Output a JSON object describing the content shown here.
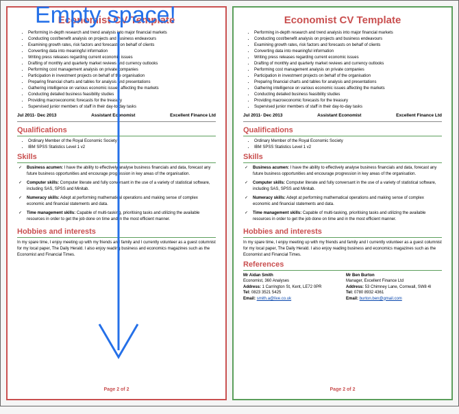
{
  "annotation": {
    "label": "Empty space!",
    "label_color": "#2570e8",
    "label_fontsize": 34,
    "arrow_color": "#2570e8",
    "arrow_width": 3
  },
  "cv": {
    "title": "Economist CV Template",
    "title_color": "#c94f4f",
    "bullets": [
      "Performing in-depth research and trend analysis into major financial markets",
      "Conducting cost/benefit analysis on projects and business endeavours",
      "Examining growth rates, risk factors and forecasts on behalf of clients",
      "Converting data into meaningful information",
      "Writing press releases regarding current economic issues",
      "Drafting of monthly and quarterly market reviews and currency outlooks",
      "Performing cost management analysis on private companies",
      "Participation in investment projects on behalf of the organisation",
      "Preparing financial charts and tables for analysis and presentations",
      "Gathering intelligence on various economic issues affecting the markets",
      "Conducting detailed business feasibility studies",
      "Providing macroeconomic forecasts for the treasury",
      "Supervised junior members of staff in their day-to-day tasks"
    ],
    "job": {
      "dates": "Jul 2011- Dec 2013",
      "role": "Assistant Economist",
      "company": "Excellent Finance Ltd"
    },
    "sections": {
      "qualifications": {
        "title": "Qualifications",
        "items": [
          "Ordinary Member of the Royal Economic Society",
          "IBM SPSS Statistics Level 1 v2"
        ]
      },
      "skills": {
        "title": "Skills",
        "items": [
          {
            "label": "Business acumen:",
            "text": " I have the ability to effectively analyse business financials and data, forecast any future business opportunities and encourage progression in key areas of the organisation."
          },
          {
            "label": "Computer skills:",
            "text": " Computer literate and fully conversant in the use of a variety of statistical software, including SAS, SPSS and Minitab."
          },
          {
            "label": "Numeracy skills:",
            "text": " Adept at performing mathematical operations and making sense of complex economic and financial statements and data."
          },
          {
            "label": "Time management skills:",
            "text": " Capable of multi-tasking, prioritising tasks and utilizing the available resources in order to get the job done on time and in the most efficient manner."
          }
        ]
      },
      "hobbies": {
        "title": "Hobbies and interests",
        "text": "In my spare time, I enjoy meeting up with my friends and family and I currently volunteer as a guest columnist for my local paper, The Daily Herald. I also enjoy reading business and economics magazines such as the Economist and Financial Times."
      },
      "references": {
        "title": "References",
        "refs": [
          {
            "name": "Mr Aidan Smith",
            "org": "Economist, 360 Analyses",
            "address": "Address: 1 Carrington St, Kent, LE72 0PR",
            "tel": "Tel: 0823 3521 5425",
            "email_label": "Email: ",
            "email": "smith.a@live.co.uk"
          },
          {
            "name": "Mr Ben Burton",
            "org": "Manager, Excellent Finance Ltd",
            "address": "Address: 53 Chimney Lane, Cornwall, SW8 4I",
            "tel": "Tel: 0780 8932 4361",
            "email_label": "Email: ",
            "email": "burton.ben@gmail.com"
          }
        ]
      }
    },
    "footer": "Page 2 of 2"
  },
  "styling": {
    "left_border_color": "#c94f4f",
    "right_border_color": "#5a9e5a",
    "section_heading_color": "#c94f4f",
    "accent_line_color": "#5a9e5a",
    "background": "#f5f5f5",
    "page_bg": "#ffffff",
    "body_font_size": 6,
    "title_font_size": 15
  }
}
